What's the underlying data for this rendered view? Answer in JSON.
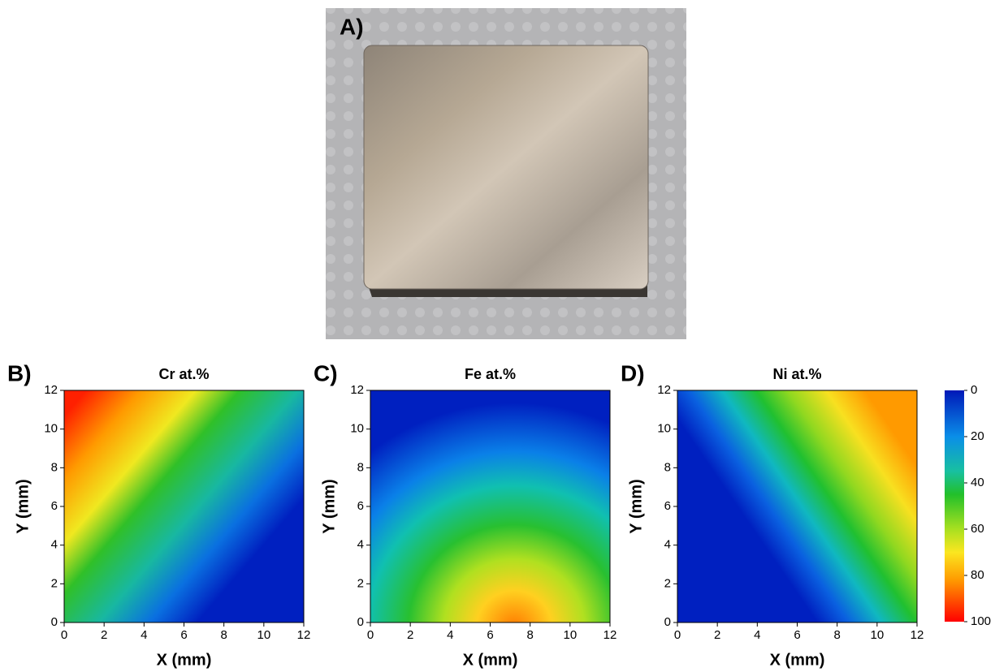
{
  "photo": {
    "label": "A)"
  },
  "chart_data": [
    {
      "type": "contour",
      "panel": "B)",
      "title": "Cr at.%",
      "x_label": "X (mm)",
      "y_label": "Y (mm)",
      "xlim": [
        0,
        12
      ],
      "ylim": [
        0,
        12
      ],
      "xticks": [
        0,
        2,
        4,
        6,
        8,
        10,
        12
      ],
      "yticks": [
        0,
        2,
        4,
        6,
        8,
        10,
        12
      ]
    },
    {
      "type": "contour",
      "panel": "C)",
      "title": "Fe at.%",
      "x_label": "X (mm)",
      "y_label": "Y (mm)",
      "xlim": [
        0,
        12
      ],
      "ylim": [
        0,
        12
      ],
      "xticks": [
        0,
        2,
        4,
        6,
        8,
        10,
        12
      ],
      "yticks": [
        0,
        2,
        4,
        6,
        8,
        10,
        12
      ]
    },
    {
      "type": "contour",
      "panel": "D)",
      "title": "Ni at.%",
      "x_label": "X (mm)",
      "y_label": "Y (mm)",
      "xlim": [
        0,
        12
      ],
      "ylim": [
        0,
        12
      ],
      "xticks": [
        0,
        2,
        4,
        6,
        8,
        10,
        12
      ],
      "yticks": [
        0,
        2,
        4,
        6,
        8,
        10,
        12
      ]
    }
  ],
  "colorbar": {
    "lim": [
      0,
      100
    ],
    "ticks": [
      0,
      20,
      40,
      60,
      80,
      100
    ]
  }
}
